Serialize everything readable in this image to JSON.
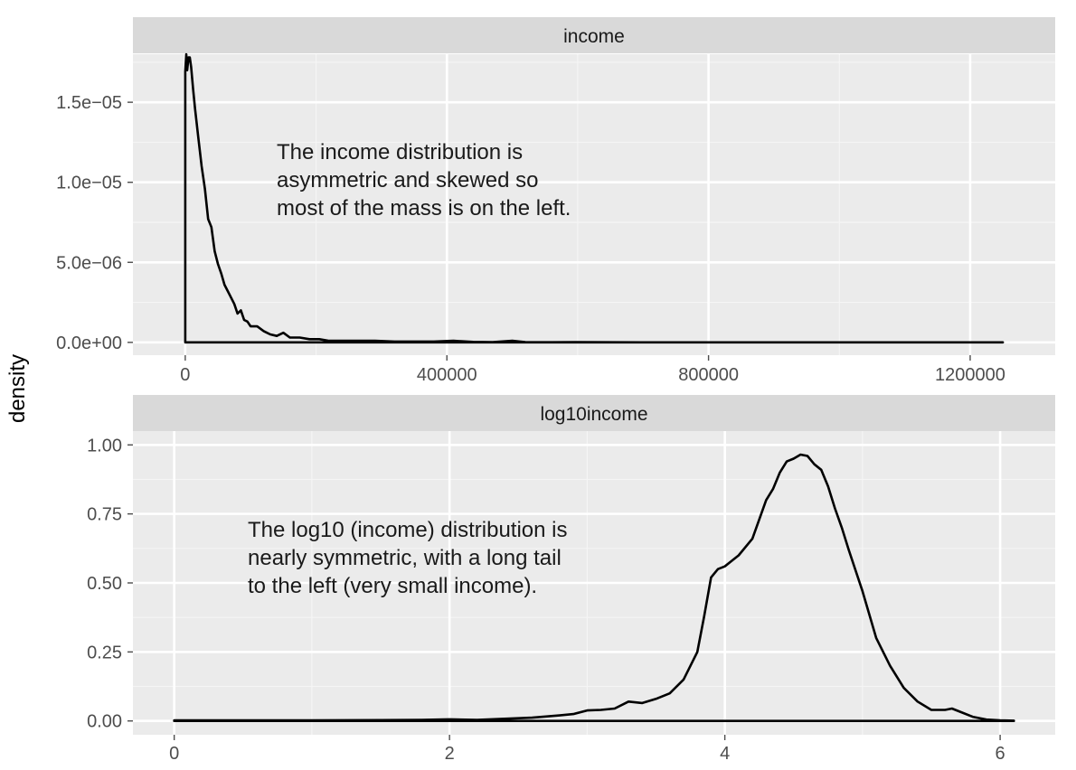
{
  "chart_data": {
    "type": "line",
    "ylabel": "density",
    "facets": [
      {
        "strip": "income",
        "xlim": [
          -80000,
          1330000
        ],
        "ylim": [
          -8e-07,
          1.8e-05
        ],
        "xticks": [
          0,
          400000,
          800000,
          1200000
        ],
        "xtick_labels": [
          "0",
          "400000",
          "800000",
          "1200000"
        ],
        "yticks": [
          0,
          5e-06,
          1e-05,
          1.5e-05
        ],
        "ytick_labels": [
          "0.0e+00",
          "5.0e−06",
          "1.0e−05",
          "1.5e−05"
        ],
        "annotation": [
          "The income distribution is",
          "asymmetric and skewed so",
          "most of the mass is on the left."
        ],
        "x": [
          0,
          1500,
          3000,
          5000,
          7000,
          9000,
          12000,
          15000,
          20000,
          25000,
          30000,
          35000,
          40000,
          45000,
          50000,
          55000,
          60000,
          65000,
          70000,
          75000,
          80000,
          85000,
          90000,
          95000,
          100000,
          110000,
          120000,
          130000,
          140000,
          150000,
          160000,
          175000,
          190000,
          205000,
          220000,
          240000,
          260000,
          290000,
          320000,
          350000,
          380000,
          410000,
          440000,
          470000,
          500000,
          520000,
          560000,
          600000,
          650000,
          700000,
          800000,
          900000,
          1000000,
          1100000,
          1250000
        ],
        "y": [
          1.69e-05,
          1.8e-05,
          1.7e-05,
          1.78e-05,
          1.78e-05,
          1.72e-05,
          1.58e-05,
          1.46e-05,
          1.28e-05,
          1.1e-05,
          9.6e-06,
          7.7e-06,
          7.2e-06,
          5.7e-06,
          4.9e-06,
          4.3e-06,
          3.6e-06,
          3.2e-06,
          2.8e-06,
          2.4e-06,
          1.8e-06,
          2e-06,
          1.4e-06,
          1.3e-06,
          1e-06,
          1e-06,
          7e-07,
          5e-07,
          4e-07,
          6e-07,
          3e-07,
          3e-07,
          2e-07,
          2e-07,
          1e-07,
          1e-07,
          1e-07,
          1e-07,
          5e-08,
          5e-08,
          5e-08,
          1e-07,
          3e-08,
          2e-08,
          1e-07,
          2e-08,
          1e-08,
          2e-08,
          1e-08,
          0,
          0,
          0,
          0,
          0,
          0
        ]
      },
      {
        "strip": "log10income",
        "xlim": [
          -0.3,
          6.4
        ],
        "ylim": [
          -0.05,
          1.05
        ],
        "xticks": [
          0,
          2,
          4,
          6
        ],
        "xtick_labels": [
          "0",
          "2",
          "4",
          "6"
        ],
        "yticks": [
          0,
          0.25,
          0.5,
          0.75,
          1.0
        ],
        "ytick_labels": [
          "0.00",
          "0.25",
          "0.50",
          "0.75",
          "1.00"
        ],
        "annotation": [
          "The log10 (income) distribution is",
          "nearly symmetric, with a long tail",
          "to the left (very small income)."
        ],
        "x": [
          0,
          0.5,
          1.0,
          1.5,
          1.8,
          2.0,
          2.2,
          2.4,
          2.6,
          2.8,
          2.9,
          3.0,
          3.1,
          3.2,
          3.3,
          3.4,
          3.5,
          3.6,
          3.7,
          3.8,
          3.85,
          3.9,
          3.95,
          4.0,
          4.05,
          4.1,
          4.2,
          4.3,
          4.35,
          4.4,
          4.45,
          4.5,
          4.55,
          4.6,
          4.65,
          4.7,
          4.75,
          4.8,
          4.85,
          4.9,
          5.0,
          5.1,
          5.2,
          5.3,
          5.4,
          5.5,
          5.6,
          5.65,
          5.7,
          5.8,
          5.9,
          6.0,
          6.1
        ],
        "y": [
          0.002,
          0.002,
          0.002,
          0.003,
          0.004,
          0.006,
          0.004,
          0.008,
          0.012,
          0.02,
          0.025,
          0.038,
          0.04,
          0.045,
          0.07,
          0.065,
          0.08,
          0.1,
          0.15,
          0.25,
          0.38,
          0.52,
          0.55,
          0.56,
          0.58,
          0.6,
          0.66,
          0.8,
          0.84,
          0.9,
          0.94,
          0.95,
          0.965,
          0.96,
          0.93,
          0.91,
          0.85,
          0.77,
          0.7,
          0.62,
          0.47,
          0.3,
          0.2,
          0.12,
          0.07,
          0.04,
          0.04,
          0.045,
          0.035,
          0.015,
          0.005,
          0.002,
          0.001
        ]
      }
    ]
  }
}
